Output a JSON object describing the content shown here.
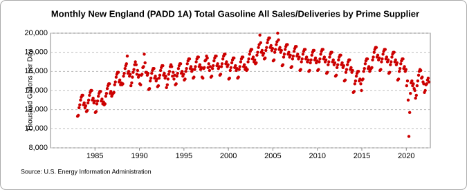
{
  "chart_data": {
    "type": "scatter",
    "title": "Monthly New England (PADD 1A) Total Gasoline All Sales/Deliveries by Prime Supplier",
    "y_label": "Thousand Gallons per Day",
    "source": "Source: U.S. Energy Information Administration",
    "color": "#cc0000",
    "grid": true,
    "xlim": [
      1980,
      2022.7
    ],
    "ylim": [
      8000,
      20000
    ],
    "xticks": [
      1985,
      1990,
      1995,
      2000,
      2005,
      2010,
      2015,
      2020
    ],
    "yticks": [
      {
        "value": 8000,
        "label": "8,000"
      },
      {
        "value": 10000,
        "label": "10,000"
      },
      {
        "value": 12000,
        "label": "12,000"
      },
      {
        "value": 14000,
        "label": "14,000"
      },
      {
        "value": 16000,
        "label": "16,000"
      },
      {
        "value": 18000,
        "label": "18,000"
      },
      {
        "value": 20000,
        "label": "20,000"
      }
    ],
    "x": [
      1983.04,
      1983.13,
      1983.21,
      1983.29,
      1983.38,
      1983.46,
      1983.54,
      1983.63,
      1983.71,
      1983.79,
      1983.88,
      1983.96,
      1984.04,
      1984.13,
      1984.21,
      1984.29,
      1984.38,
      1984.46,
      1984.54,
      1984.63,
      1984.71,
      1984.79,
      1984.88,
      1984.96,
      1985.04,
      1985.13,
      1985.21,
      1985.29,
      1985.38,
      1985.46,
      1985.54,
      1985.63,
      1985.71,
      1985.79,
      1985.88,
      1985.96,
      1986.04,
      1986.13,
      1986.21,
      1986.29,
      1986.38,
      1986.46,
      1986.54,
      1986.63,
      1986.71,
      1986.79,
      1986.88,
      1986.96,
      1987.04,
      1987.13,
      1987.21,
      1987.29,
      1987.38,
      1987.46,
      1987.54,
      1987.63,
      1987.71,
      1987.79,
      1987.88,
      1987.96,
      1988.04,
      1988.13,
      1988.21,
      1988.29,
      1988.38,
      1988.46,
      1988.54,
      1988.63,
      1988.71,
      1988.79,
      1988.88,
      1988.96,
      1989.04,
      1989.13,
      1989.21,
      1989.29,
      1989.38,
      1989.46,
      1989.54,
      1989.63,
      1989.71,
      1989.79,
      1989.88,
      1989.96,
      1990.04,
      1990.13,
      1990.21,
      1990.29,
      1990.38,
      1990.46,
      1990.54,
      1990.63,
      1990.71,
      1990.79,
      1990.88,
      1990.96,
      1991.04,
      1991.13,
      1991.21,
      1991.29,
      1991.38,
      1991.46,
      1991.54,
      1991.63,
      1991.71,
      1991.79,
      1991.88,
      1991.96,
      1992.04,
      1992.13,
      1992.21,
      1992.29,
      1992.38,
      1992.46,
      1992.54,
      1992.63,
      1992.71,
      1992.79,
      1992.88,
      1992.96,
      1993.04,
      1993.13,
      1993.21,
      1993.29,
      1993.38,
      1993.46,
      1993.54,
      1993.63,
      1993.71,
      1993.79,
      1993.88,
      1993.96,
      1994.04,
      1994.13,
      1994.21,
      1994.29,
      1994.38,
      1994.46,
      1994.54,
      1994.63,
      1994.71,
      1994.79,
      1994.88,
      1994.96,
      1995.04,
      1995.13,
      1995.21,
      1995.29,
      1995.38,
      1995.46,
      1995.54,
      1995.63,
      1995.71,
      1995.79,
      1995.88,
      1995.96,
      1996.04,
      1996.13,
      1996.21,
      1996.29,
      1996.38,
      1996.46,
      1996.54,
      1996.63,
      1996.71,
      1996.79,
      1996.88,
      1996.96,
      1997.04,
      1997.13,
      1997.21,
      1997.29,
      1997.38,
      1997.46,
      1997.54,
      1997.63,
      1997.71,
      1997.79,
      1997.88,
      1997.96,
      1998.04,
      1998.13,
      1998.21,
      1998.29,
      1998.38,
      1998.46,
      1998.54,
      1998.63,
      1998.71,
      1998.79,
      1998.88,
      1998.96,
      1999.04,
      1999.13,
      1999.21,
      1999.29,
      1999.38,
      1999.46,
      1999.54,
      1999.63,
      1999.71,
      1999.79,
      1999.88,
      1999.96,
      2000.04,
      2000.13,
      2000.21,
      2000.29,
      2000.38,
      2000.46,
      2000.54,
      2000.63,
      2000.71,
      2000.79,
      2000.88,
      2000.96,
      2001.04,
      2001.13,
      2001.21,
      2001.29,
      2001.38,
      2001.46,
      2001.54,
      2001.63,
      2001.71,
      2001.79,
      2001.88,
      2001.96,
      2002.04,
      2002.13,
      2002.21,
      2002.29,
      2002.38,
      2002.46,
      2002.54,
      2002.63,
      2002.71,
      2002.79,
      2002.88,
      2002.96,
      2003.04,
      2003.13,
      2003.21,
      2003.29,
      2003.38,
      2003.46,
      2003.54,
      2003.63,
      2003.71,
      2003.79,
      2003.88,
      2003.96,
      2004.04,
      2004.13,
      2004.21,
      2004.29,
      2004.38,
      2004.46,
      2004.54,
      2004.63,
      2004.71,
      2004.79,
      2004.88,
      2004.96,
      2005.04,
      2005.13,
      2005.21,
      2005.29,
      2005.38,
      2005.46,
      2005.54,
      2005.63,
      2005.71,
      2005.79,
      2005.88,
      2005.96,
      2006.04,
      2006.13,
      2006.21,
      2006.29,
      2006.38,
      2006.46,
      2006.54,
      2006.63,
      2006.71,
      2006.79,
      2006.88,
      2006.96,
      2007.04,
      2007.13,
      2007.21,
      2007.29,
      2007.38,
      2007.46,
      2007.54,
      2007.63,
      2007.71,
      2007.79,
      2007.88,
      2007.96,
      2008.04,
      2008.13,
      2008.21,
      2008.29,
      2008.38,
      2008.46,
      2008.54,
      2008.63,
      2008.71,
      2008.79,
      2008.88,
      2008.96,
      2009.04,
      2009.13,
      2009.21,
      2009.29,
      2009.38,
      2009.46,
      2009.54,
      2009.63,
      2009.71,
      2009.79,
      2009.88,
      2009.96,
      2010.04,
      2010.13,
      2010.21,
      2010.29,
      2010.38,
      2010.46,
      2010.54,
      2010.63,
      2010.71,
      2010.79,
      2010.88,
      2010.96,
      2011.04,
      2011.13,
      2011.21,
      2011.29,
      2011.38,
      2011.46,
      2011.54,
      2011.63,
      2011.71,
      2011.79,
      2011.88,
      2011.96,
      2012.04,
      2012.13,
      2012.21,
      2012.29,
      2012.38,
      2012.46,
      2012.54,
      2012.63,
      2012.71,
      2012.79,
      2012.88,
      2012.96,
      2013.04,
      2013.13,
      2013.21,
      2013.29,
      2013.38,
      2013.46,
      2013.54,
      2013.63,
      2013.71,
      2013.79,
      2013.88,
      2013.96,
      2014.04,
      2014.13,
      2014.21,
      2014.29,
      2014.38,
      2014.46,
      2014.54,
      2014.63,
      2014.71,
      2014.79,
      2014.88,
      2014.96,
      2015.04,
      2015.13,
      2015.21,
      2015.29,
      2015.38,
      2015.46,
      2015.54,
      2015.63,
      2015.71,
      2015.79,
      2015.88,
      2015.96,
      2016.04,
      2016.13,
      2016.21,
      2016.29,
      2016.38,
      2016.46,
      2016.54,
      2016.63,
      2016.71,
      2016.79,
      2016.88,
      2016.96,
      2017.04,
      2017.13,
      2017.21,
      2017.29,
      2017.38,
      2017.46,
      2017.54,
      2017.63,
      2017.71,
      2017.79,
      2017.88,
      2017.96,
      2018.04,
      2018.13,
      2018.21,
      2018.29,
      2018.38,
      2018.46,
      2018.54,
      2018.63,
      2018.71,
      2018.79,
      2018.88,
      2018.96,
      2019.04,
      2019.13,
      2019.21,
      2019.29,
      2019.38,
      2019.46,
      2019.54,
      2019.63,
      2019.71,
      2019.79,
      2019.88,
      2019.96,
      2020.04,
      2020.13,
      2020.21,
      2020.29,
      2020.38,
      2020.46,
      2020.54,
      2020.63,
      2020.71,
      2020.79,
      2020.88,
      2020.96,
      2021.04,
      2021.13,
      2021.21,
      2021.29,
      2021.38,
      2021.46,
      2021.54,
      2021.63,
      2021.71,
      2021.79,
      2021.88,
      2021.96,
      2022.04,
      2022.13,
      2022.21,
      2022.29,
      2022.38,
      2022.46,
      2022.54
    ],
    "values": [
      11300,
      11400,
      12200,
      12500,
      13000,
      13300,
      13500,
      13500,
      12500,
      12700,
      12200,
      12400,
      11800,
      11900,
      12700,
      13000,
      13500,
      13800,
      14000,
      14000,
      13000,
      13200,
      12700,
      12900,
      11700,
      11800,
      12600,
      12900,
      13400,
      13700,
      13900,
      13900,
      12900,
      13100,
      12600,
      12800,
      12500,
      12600,
      13400,
      13700,
      14200,
      14500,
      14700,
      14700,
      13700,
      13900,
      13400,
      13600,
      13700,
      13800,
      14600,
      14900,
      15400,
      15700,
      15900,
      15900,
      14900,
      15100,
      14600,
      14800,
      14600,
      14700,
      15500,
      15800,
      16300,
      16600,
      16800,
      17600,
      15800,
      16000,
      15500,
      15700,
      14500,
      14800,
      15400,
      15900,
      16200,
      16700,
      17000,
      16700,
      15700,
      16100,
      15400,
      15600,
      14700,
      14600,
      15600,
      15700,
      16400,
      16500,
      17800,
      16900,
      15900,
      15900,
      15600,
      15800,
      14100,
      14200,
      15000,
      15300,
      15800,
      16100,
      16300,
      16300,
      15300,
      15500,
      15000,
      15200,
      14400,
      14500,
      15300,
      15600,
      16100,
      16400,
      16600,
      16600,
      15600,
      15800,
      15300,
      15500,
      14300,
      14600,
      15200,
      15700,
      16000,
      16500,
      16700,
      16500,
      15500,
      15900,
      15200,
      15600,
      14600,
      14700,
      15500,
      15800,
      16300,
      16600,
      16800,
      16800,
      15800,
      16000,
      15500,
      15700,
      15100,
      15200,
      16000,
      16300,
      16800,
      17100,
      17300,
      17300,
      16300,
      16500,
      16000,
      16200,
      15300,
      15400,
      16200,
      16500,
      17000,
      17300,
      17500,
      17500,
      16500,
      16700,
      16200,
      16400,
      15400,
      15300,
      16300,
      16400,
      17100,
      17200,
      17600,
      17400,
      16400,
      16800,
      16100,
      16500,
      15400,
      15500,
      16300,
      16600,
      17100,
      17400,
      17600,
      17600,
      16600,
      16800,
      16300,
      16500,
      15600,
      15700,
      16500,
      16800,
      17300,
      17600,
      17800,
      17800,
      16800,
      17000,
      16500,
      16700,
      15200,
      15300,
      16100,
      16400,
      16900,
      17200,
      17400,
      17400,
      16400,
      16600,
      16100,
      16300,
      15300,
      15400,
      16200,
      16500,
      17000,
      17300,
      17500,
      17500,
      16500,
      16700,
      16200,
      16400,
      16100,
      16200,
      17000,
      17300,
      17800,
      18100,
      18300,
      18300,
      17300,
      17500,
      17000,
      17200,
      16800,
      16900,
      17700,
      18000,
      18500,
      18800,
      19800,
      19000,
      18000,
      18200,
      17700,
      17900,
      17300,
      17400,
      18200,
      18500,
      19000,
      19300,
      19500,
      19500,
      18500,
      18700,
      18200,
      18400,
      17100,
      17200,
      18000,
      18300,
      18800,
      19100,
      20000,
      19300,
      18300,
      18500,
      18000,
      18200,
      16600,
      16700,
      17500,
      17800,
      18300,
      18600,
      18800,
      18800,
      17800,
      18000,
      17500,
      17700,
      16400,
      16500,
      17300,
      17600,
      18100,
      18400,
      18600,
      18600,
      17600,
      17800,
      17300,
      17500,
      16100,
      16200,
      17000,
      17300,
      17800,
      18100,
      18300,
      18300,
      17300,
      17500,
      17000,
      17200,
      16000,
      16100,
      16900,
      17200,
      17700,
      18000,
      18200,
      18200,
      17200,
      17400,
      16900,
      17100,
      16100,
      16200,
      17000,
      17300,
      17800,
      18100,
      18300,
      18300,
      17300,
      17500,
      17000,
      17200,
      15800,
      15900,
      16700,
      17000,
      17500,
      17800,
      18000,
      18000,
      17000,
      17200,
      16700,
      16900,
      15500,
      15600,
      16400,
      16700,
      17200,
      17500,
      17700,
      17700,
      16700,
      16900,
      16400,
      16600,
      15000,
      15100,
      15900,
      16200,
      16700,
      17000,
      17200,
      17200,
      16200,
      16400,
      15900,
      16100,
      13800,
      13900,
      14700,
      15000,
      15500,
      15800,
      16000,
      16000,
      15000,
      15200,
      14700,
      14000,
      15100,
      15200,
      16000,
      16300,
      16800,
      17100,
      17300,
      17300,
      16300,
      16500,
      16000,
      16200,
      16300,
      16400,
      17200,
      17500,
      18000,
      18300,
      18500,
      18500,
      17500,
      17700,
      17200,
      17400,
      16100,
      16200,
      17000,
      17300,
      17800,
      18100,
      18300,
      18300,
      17300,
      17500,
      17000,
      17200,
      15800,
      15900,
      16700,
      17000,
      17500,
      17800,
      18000,
      18000,
      17000,
      17200,
      16700,
      16900,
      15100,
      15200,
      16000,
      16300,
      16800,
      17100,
      17300,
      17300,
      16300,
      16500,
      16000,
      16200,
      14500,
      15000,
      13000,
      9200,
      11700,
      13700,
      14800,
      15000,
      14500,
      14700,
      14200,
      14000,
      13200,
      13500,
      14500,
      15000,
      15600,
      16000,
      16200,
      16100,
      15300,
      15400,
      14900,
      14700,
      13800,
      14000,
      14600,
      14700,
      15100,
      15300,
      14900
    ]
  }
}
